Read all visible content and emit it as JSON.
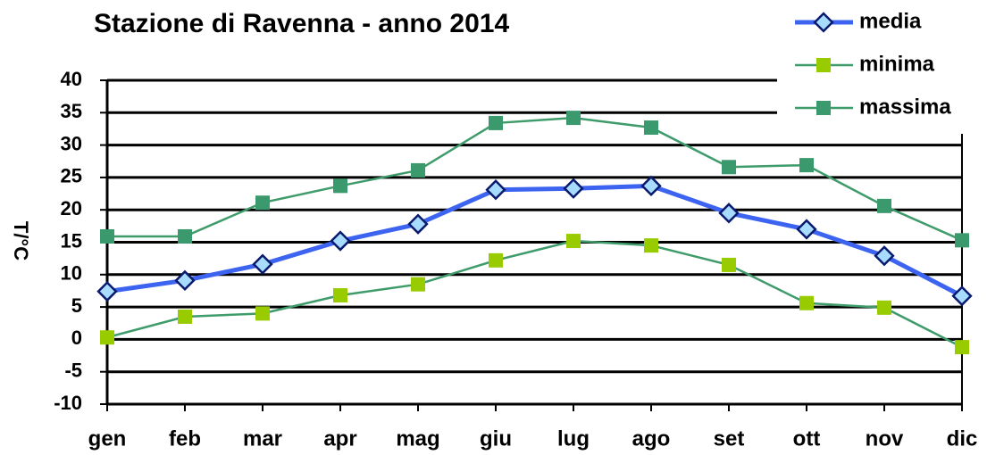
{
  "chart_data": {
    "type": "line",
    "title": "Stazione di Ravenna - anno 2014",
    "y_label": "T/°C",
    "categories": [
      "gen",
      "feb",
      "mar",
      "apr",
      "mag",
      "giu",
      "lug",
      "ago",
      "set",
      "ott",
      "nov",
      "dic"
    ],
    "series": [
      {
        "name": "media",
        "color": "#3c64f0",
        "marker_color": "#a8dcff",
        "values": [
          7.4,
          9.1,
          11.6,
          15.2,
          17.8,
          23.1,
          23.3,
          23.7,
          19.5,
          17.0,
          12.9,
          6.7
        ]
      },
      {
        "name": "minima",
        "color": "#3e9b6a",
        "marker_color": "#99cc00",
        "values": [
          0.3,
          3.5,
          4.0,
          6.8,
          8.5,
          12.2,
          15.2,
          14.5,
          11.5,
          5.6,
          4.9,
          -1.2
        ]
      },
      {
        "name": "massima",
        "color": "#3e9b6a",
        "marker_color": "#3a9a6e",
        "values": [
          15.9,
          15.9,
          21.1,
          23.7,
          26.1,
          33.4,
          34.2,
          32.7,
          26.6,
          26.9,
          20.6,
          15.3
        ]
      }
    ],
    "ylim": [
      -10,
      40
    ],
    "yticks": [
      -10,
      -5,
      0,
      5,
      10,
      15,
      20,
      25,
      30,
      35,
      40
    ],
    "grid": true,
    "legend": "top-right"
  }
}
